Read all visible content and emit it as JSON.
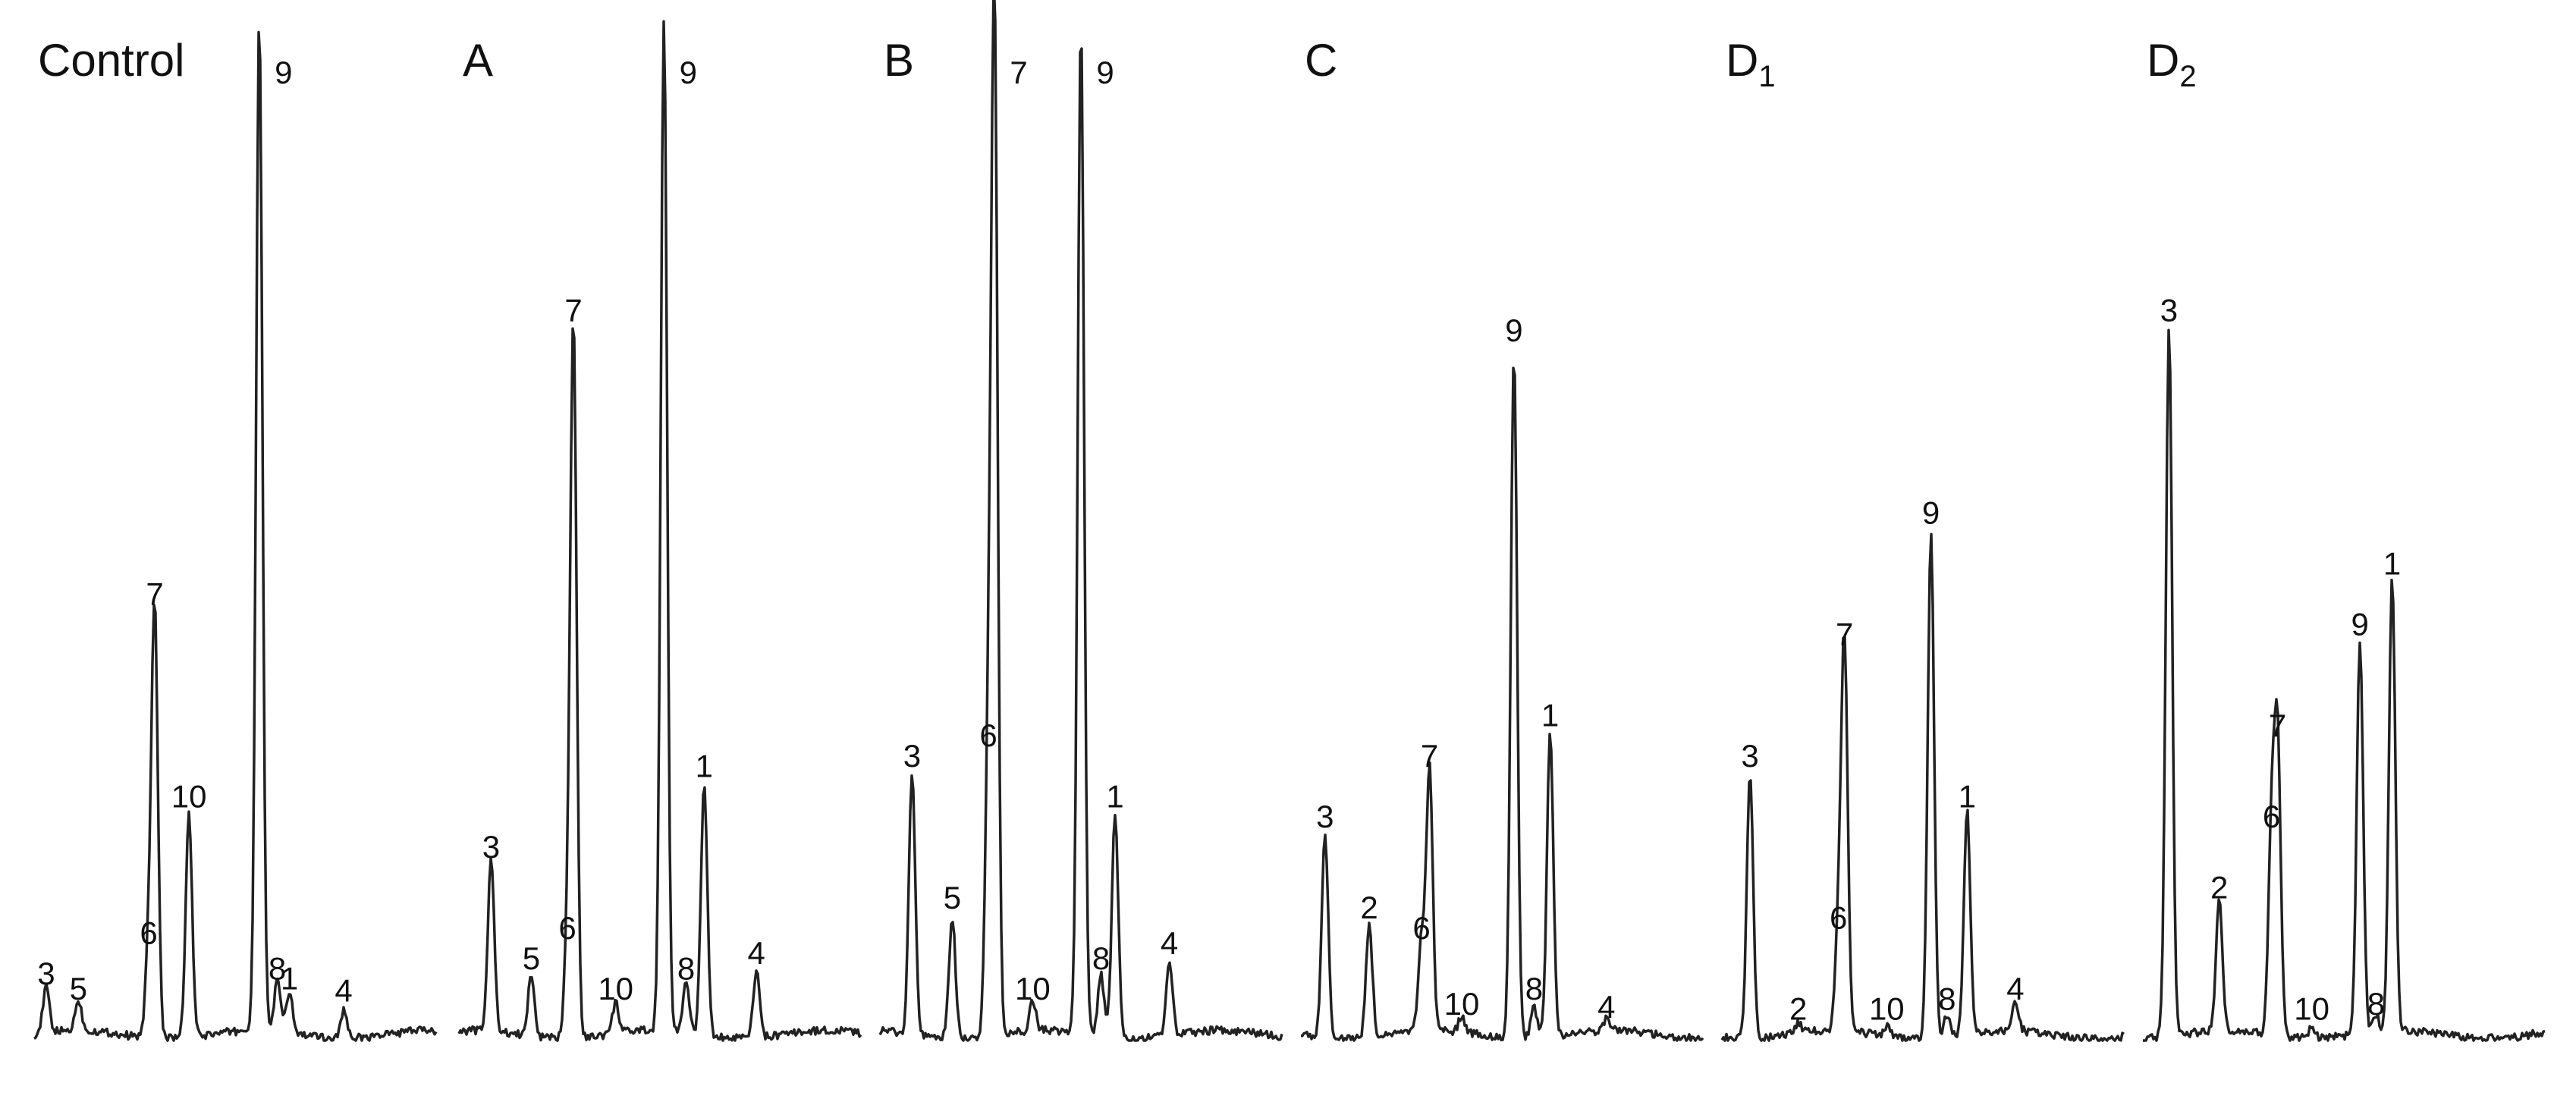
{
  "chart_data": [
    {
      "type": "line",
      "panel_label": "Control",
      "peaks": [
        {
          "label": "3",
          "retention": 0.03,
          "height": 0.045
        },
        {
          "label": "5",
          "retention": 0.11,
          "height": 0.03
        },
        {
          "label": "6",
          "retention": 0.285,
          "height": 0.085
        },
        {
          "label": "7",
          "retention": 0.3,
          "height": 0.42
        },
        {
          "label": "10",
          "retention": 0.385,
          "height": 0.22
        },
        {
          "label": "9",
          "retention": 0.56,
          "height": 1.0
        },
        {
          "label": "8",
          "retention": 0.605,
          "height": 0.05
        },
        {
          "label": "1",
          "retention": 0.635,
          "height": 0.04
        },
        {
          "label": "4",
          "retention": 0.77,
          "height": 0.028
        }
      ]
    },
    {
      "type": "line",
      "panel_label": "A",
      "peaks": [
        {
          "label": "3",
          "retention": 0.08,
          "height": 0.17
        },
        {
          "label": "5",
          "retention": 0.18,
          "height": 0.06
        },
        {
          "label": "6",
          "retention": 0.27,
          "height": 0.09
        },
        {
          "label": "7",
          "retention": 0.285,
          "height": 0.7
        },
        {
          "label": "10",
          "retention": 0.39,
          "height": 0.03
        },
        {
          "label": "9",
          "retention": 0.51,
          "height": 1.0
        },
        {
          "label": "8",
          "retention": 0.565,
          "height": 0.05
        },
        {
          "label": "1",
          "retention": 0.61,
          "height": 0.25
        },
        {
          "label": "4",
          "retention": 0.74,
          "height": 0.065
        }
      ]
    },
    {
      "type": "line",
      "panel_label": "B",
      "peaks": [
        {
          "label": "3",
          "retention": 0.08,
          "height": 0.26
        },
        {
          "label": "5",
          "retention": 0.18,
          "height": 0.12
        },
        {
          "label": "6",
          "retention": 0.27,
          "height": 0.28
        },
        {
          "label": "7",
          "retention": 0.285,
          "height": 1.0
        },
        {
          "label": "10",
          "retention": 0.38,
          "height": 0.03
        },
        {
          "label": "9",
          "retention": 0.5,
          "height": 1.0
        },
        {
          "label": "8",
          "retention": 0.55,
          "height": 0.06
        },
        {
          "label": "1",
          "retention": 0.585,
          "height": 0.22
        },
        {
          "label": "4",
          "retention": 0.72,
          "height": 0.075
        }
      ]
    },
    {
      "type": "line",
      "panel_label": "C",
      "peaks": [
        {
          "label": "3",
          "retention": 0.06,
          "height": 0.2
        },
        {
          "label": "2",
          "retention": 0.17,
          "height": 0.11
        },
        {
          "label": "6",
          "retention": 0.3,
          "height": 0.09
        },
        {
          "label": "7",
          "retention": 0.32,
          "height": 0.26
        },
        {
          "label": "10",
          "retention": 0.4,
          "height": 0.015
        },
        {
          "label": "9",
          "retention": 0.53,
          "height": 0.68
        },
        {
          "label": "8",
          "retention": 0.58,
          "height": 0.03
        },
        {
          "label": "1",
          "retention": 0.62,
          "height": 0.3
        },
        {
          "label": "4",
          "retention": 0.76,
          "height": 0.012
        }
      ]
    },
    {
      "type": "line",
      "panel_label": "D",
      "panel_label_subscript": "1",
      "peaks": [
        {
          "label": "3",
          "retention": 0.07,
          "height": 0.26
        },
        {
          "label": "2",
          "retention": 0.19,
          "height": 0.01
        },
        {
          "label": "6",
          "retention": 0.29,
          "height": 0.1
        },
        {
          "label": "7",
          "retention": 0.305,
          "height": 0.38
        },
        {
          "label": "10",
          "retention": 0.41,
          "height": 0.01
        },
        {
          "label": "9",
          "retention": 0.52,
          "height": 0.5
        },
        {
          "label": "8",
          "retention": 0.56,
          "height": 0.02
        },
        {
          "label": "1",
          "retention": 0.61,
          "height": 0.22
        },
        {
          "label": "4",
          "retention": 0.73,
          "height": 0.03
        }
      ]
    },
    {
      "type": "line",
      "panel_label": "D",
      "panel_label_subscript": "2",
      "peaks": [
        {
          "label": "3",
          "retention": 0.065,
          "height": 0.7
        },
        {
          "label": "2",
          "retention": 0.19,
          "height": 0.13
        },
        {
          "label": "6",
          "retention": 0.32,
          "height": 0.2
        },
        {
          "label": "7",
          "retention": 0.335,
          "height": 0.29
        },
        {
          "label": "10",
          "retention": 0.42,
          "height": 0.01
        },
        {
          "label": "9",
          "retention": 0.54,
          "height": 0.39
        },
        {
          "label": "8",
          "retention": 0.58,
          "height": 0.015
        },
        {
          "label": "1",
          "retention": 0.62,
          "height": 0.45
        }
      ]
    }
  ]
}
